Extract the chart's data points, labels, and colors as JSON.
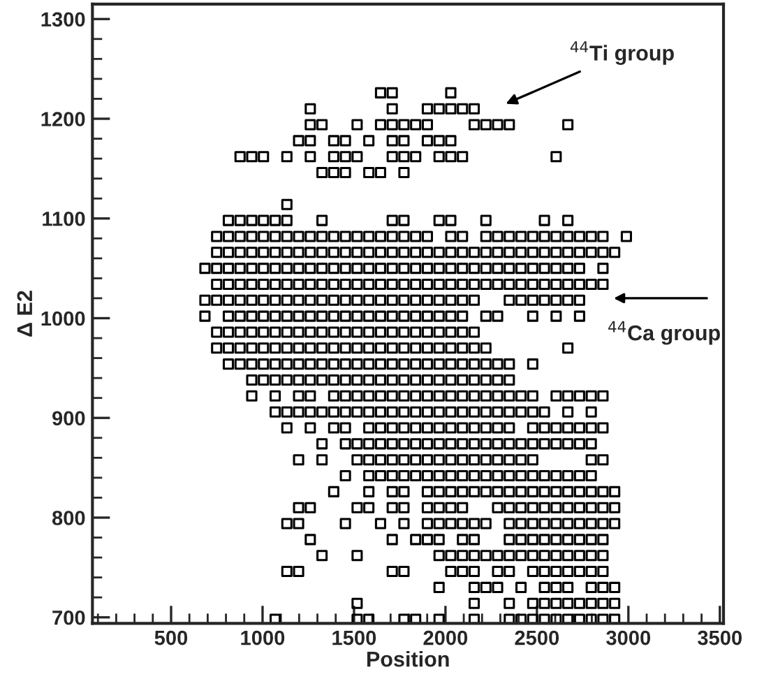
{
  "chart_data": {
    "type": "scatter",
    "xlabel": "Position",
    "ylabel": "Δ E2",
    "marker": "square",
    "color": "#000000",
    "grid": false,
    "legend": false,
    "xlim": [
      70,
      3520
    ],
    "xticks": [
      500,
      1000,
      1500,
      2000,
      2500,
      3000,
      3500
    ],
    "ylim": [
      694,
      1315
    ],
    "yticks": [
      700,
      800,
      900,
      1000,
      1100,
      1200,
      1300
    ],
    "annotations": [
      "$^{44}$Ti group",
      "$^{44}$Ca group"
    ],
    "series": [
      {
        "x": [
          1645,
          1709,
          2029
        ],
        "values": [
          1226,
          1226,
          1226
        ]
      },
      {
        "x": [
          1261,
          1709,
          1901,
          1965,
          2029,
          2093,
          2157
        ],
        "values": [
          1210,
          1210,
          1210,
          1210,
          1210,
          1210,
          1210
        ]
      },
      {
        "x": [
          1261,
          1325,
          1517,
          1645,
          1709,
          1773,
          1837,
          1901,
          2157,
          2221,
          2285,
          2349,
          2669
        ],
        "values": [
          1194,
          1194,
          1194,
          1194,
          1194,
          1194,
          1194,
          1194,
          1194,
          1194,
          1194,
          1194,
          1194
        ]
      },
      {
        "x": [
          1197,
          1261,
          1389,
          1453,
          1581,
          1709,
          1773,
          1901,
          1965,
          2029
        ],
        "values": [
          1178,
          1178,
          1178,
          1178,
          1178,
          1178,
          1178,
          1178,
          1178,
          1178
        ]
      },
      {
        "x": [
          877,
          941,
          1005,
          1133,
          1261,
          1389,
          1453,
          1517,
          1709,
          1773,
          1837,
          1965,
          2029,
          2093,
          2605
        ],
        "values": [
          1162,
          1162,
          1162,
          1162,
          1162,
          1162,
          1162,
          1162,
          1162,
          1162,
          1162,
          1162,
          1162,
          1162,
          1162
        ]
      },
      {
        "x": [
          1325,
          1389,
          1453,
          1581,
          1645,
          1773
        ],
        "values": [
          1146,
          1146,
          1146,
          1146,
          1146,
          1146
        ]
      },
      {
        "x": [
          1133
        ],
        "values": [
          1114
        ]
      },
      {
        "x": [
          813,
          877,
          941,
          1005,
          1069,
          1133,
          1325,
          1709,
          1773,
          1965,
          2029,
          2221,
          2541,
          2669
        ],
        "values": [
          1098,
          1098,
          1098,
          1098,
          1098,
          1098,
          1098,
          1098,
          1098,
          1098,
          1098,
          1098,
          1098,
          1098
        ]
      },
      {
        "x": [
          749,
          813,
          877,
          941,
          1005,
          1069,
          1133,
          1197,
          1261,
          1325,
          1389,
          1453,
          1517,
          1581,
          1645,
          1709,
          1773,
          1837,
          1901,
          2029,
          2093,
          2221,
          2285,
          2349,
          2413,
          2477,
          2541,
          2605,
          2669,
          2733,
          2797,
          2861,
          2989
        ],
        "values": [
          1082,
          1082,
          1082,
          1082,
          1082,
          1082,
          1082,
          1082,
          1082,
          1082,
          1082,
          1082,
          1082,
          1082,
          1082,
          1082,
          1082,
          1082,
          1082,
          1082,
          1082,
          1082,
          1082,
          1082,
          1082,
          1082,
          1082,
          1082,
          1082,
          1082,
          1082,
          1082,
          1082
        ]
      },
      {
        "x": [
          749,
          813,
          877,
          941,
          1005,
          1069,
          1133,
          1197,
          1261,
          1325,
          1389,
          1453,
          1517,
          1581,
          1645,
          1709,
          1773,
          1837,
          1901,
          1965,
          2029,
          2093,
          2157,
          2221,
          2285,
          2349,
          2413,
          2477,
          2541,
          2605,
          2669,
          2733,
          2797,
          2861,
          2925
        ],
        "values": [
          1066,
          1066,
          1066,
          1066,
          1066,
          1066,
          1066,
          1066,
          1066,
          1066,
          1066,
          1066,
          1066,
          1066,
          1066,
          1066,
          1066,
          1066,
          1066,
          1066,
          1066,
          1066,
          1066,
          1066,
          1066,
          1066,
          1066,
          1066,
          1066,
          1066,
          1066,
          1066,
          1066,
          1066,
          1066
        ]
      },
      {
        "x": [
          685,
          749,
          813,
          877,
          941,
          1005,
          1069,
          1133,
          1197,
          1261,
          1325,
          1389,
          1453,
          1517,
          1581,
          1645,
          1709,
          1773,
          1837,
          1901,
          1965,
          2029,
          2093,
          2157,
          2221,
          2285,
          2349,
          2413,
          2477,
          2541,
          2605,
          2669,
          2733,
          2861
        ],
        "values": [
          1050,
          1050,
          1050,
          1050,
          1050,
          1050,
          1050,
          1050,
          1050,
          1050,
          1050,
          1050,
          1050,
          1050,
          1050,
          1050,
          1050,
          1050,
          1050,
          1050,
          1050,
          1050,
          1050,
          1050,
          1050,
          1050,
          1050,
          1050,
          1050,
          1050,
          1050,
          1050,
          1050,
          1050
        ]
      },
      {
        "x": [
          749,
          813,
          877,
          941,
          1005,
          1069,
          1133,
          1197,
          1261,
          1325,
          1389,
          1453,
          1517,
          1581,
          1645,
          1709,
          1773,
          1837,
          1901,
          1965,
          2029,
          2093,
          2157,
          2221,
          2285,
          2349,
          2413,
          2477,
          2541,
          2605,
          2669,
          2733,
          2797,
          2861
        ],
        "values": [
          1034,
          1034,
          1034,
          1034,
          1034,
          1034,
          1034,
          1034,
          1034,
          1034,
          1034,
          1034,
          1034,
          1034,
          1034,
          1034,
          1034,
          1034,
          1034,
          1034,
          1034,
          1034,
          1034,
          1034,
          1034,
          1034,
          1034,
          1034,
          1034,
          1034,
          1034,
          1034,
          1034,
          1034
        ]
      },
      {
        "x": [
          685,
          749,
          813,
          877,
          941,
          1005,
          1069,
          1133,
          1197,
          1261,
          1325,
          1389,
          1453,
          1517,
          1581,
          1645,
          1709,
          1773,
          1837,
          1901,
          1965,
          2029,
          2093,
          2157,
          2349,
          2413,
          2477,
          2541,
          2605,
          2669,
          2733
        ],
        "values": [
          1018,
          1018,
          1018,
          1018,
          1018,
          1018,
          1018,
          1018,
          1018,
          1018,
          1018,
          1018,
          1018,
          1018,
          1018,
          1018,
          1018,
          1018,
          1018,
          1018,
          1018,
          1018,
          1018,
          1018,
          1018,
          1018,
          1018,
          1018,
          1018,
          1018,
          1018
        ]
      },
      {
        "x": [
          685,
          813,
          877,
          941,
          1005,
          1069,
          1133,
          1197,
          1261,
          1325,
          1389,
          1453,
          1517,
          1581,
          1645,
          1709,
          1773,
          1837,
          1901,
          1965,
          2029,
          2093,
          2221,
          2285,
          2477,
          2605,
          2733
        ],
        "values": [
          1002,
          1002,
          1002,
          1002,
          1002,
          1002,
          1002,
          1002,
          1002,
          1002,
          1002,
          1002,
          1002,
          1002,
          1002,
          1002,
          1002,
          1002,
          1002,
          1002,
          1002,
          1002,
          1002,
          1002,
          1002,
          1002,
          1002
        ]
      },
      {
        "x": [
          749,
          813,
          877,
          941,
          1005,
          1069,
          1133,
          1197,
          1261,
          1325,
          1389,
          1453,
          1517,
          1581,
          1645,
          1709,
          1773,
          1837,
          1901,
          1965,
          2029,
          2093,
          2157
        ],
        "values": [
          986,
          986,
          986,
          986,
          986,
          986,
          986,
          986,
          986,
          986,
          986,
          986,
          986,
          986,
          986,
          986,
          986,
          986,
          986,
          986,
          986,
          986,
          986
        ]
      },
      {
        "x": [
          749,
          813,
          877,
          941,
          1005,
          1069,
          1133,
          1197,
          1261,
          1325,
          1389,
          1453,
          1517,
          1581,
          1645,
          1709,
          1773,
          1837,
          1901,
          1965,
          2029,
          2093,
          2157,
          2221,
          2669
        ],
        "values": [
          970,
          970,
          970,
          970,
          970,
          970,
          970,
          970,
          970,
          970,
          970,
          970,
          970,
          970,
          970,
          970,
          970,
          970,
          970,
          970,
          970,
          970,
          970,
          970,
          970
        ]
      },
      {
        "x": [
          813,
          877,
          941,
          1005,
          1069,
          1133,
          1197,
          1261,
          1325,
          1389,
          1453,
          1517,
          1581,
          1645,
          1709,
          1773,
          1837,
          1901,
          1965,
          2029,
          2093,
          2157,
          2221,
          2285,
          2349,
          2477
        ],
        "values": [
          954,
          954,
          954,
          954,
          954,
          954,
          954,
          954,
          954,
          954,
          954,
          954,
          954,
          954,
          954,
          954,
          954,
          954,
          954,
          954,
          954,
          954,
          954,
          954,
          954,
          954
        ]
      },
      {
        "x": [
          941,
          1005,
          1069,
          1133,
          1197,
          1261,
          1325,
          1389,
          1453,
          1517,
          1581,
          1645,
          1709,
          1773,
          1837,
          1901,
          1965,
          2029,
          2093,
          2157,
          2221,
          2285,
          2349
        ],
        "values": [
          938,
          938,
          938,
          938,
          938,
          938,
          938,
          938,
          938,
          938,
          938,
          938,
          938,
          938,
          938,
          938,
          938,
          938,
          938,
          938,
          938,
          938,
          938
        ]
      },
      {
        "x": [
          941,
          1069,
          1197,
          1261,
          1389,
          1453,
          1517,
          1581,
          1645,
          1709,
          1773,
          1837,
          1901,
          1965,
          2029,
          2093,
          2157,
          2221,
          2285,
          2349,
          2413,
          2477,
          2605,
          2669,
          2733,
          2797,
          2861
        ],
        "values": [
          922,
          922,
          922,
          922,
          922,
          922,
          922,
          922,
          922,
          922,
          922,
          922,
          922,
          922,
          922,
          922,
          922,
          922,
          922,
          922,
          922,
          922,
          922,
          922,
          922,
          922,
          922
        ]
      },
      {
        "x": [
          1069,
          1133,
          1197,
          1261,
          1325,
          1389,
          1453,
          1517,
          1581,
          1645,
          1709,
          1773,
          1837,
          1901,
          1965,
          2029,
          2093,
          2157,
          2221,
          2285,
          2349,
          2413,
          2477,
          2541,
          2669,
          2797
        ],
        "values": [
          906,
          906,
          906,
          906,
          906,
          906,
          906,
          906,
          906,
          906,
          906,
          906,
          906,
          906,
          906,
          906,
          906,
          906,
          906,
          906,
          906,
          906,
          906,
          906,
          906,
          906
        ]
      },
      {
        "x": [
          1133,
          1261,
          1389,
          1453,
          1581,
          1645,
          1709,
          1773,
          1837,
          1901,
          1965,
          2029,
          2093,
          2157,
          2221,
          2285,
          2349,
          2477,
          2541,
          2605,
          2669,
          2733,
          2797,
          2861
        ],
        "values": [
          890,
          890,
          890,
          890,
          890,
          890,
          890,
          890,
          890,
          890,
          890,
          890,
          890,
          890,
          890,
          890,
          890,
          890,
          890,
          890,
          890,
          890,
          890,
          890
        ]
      },
      {
        "x": [
          1325,
          1453,
          1517,
          1581,
          1645,
          1709,
          1773,
          1837,
          1901,
          1965,
          2029,
          2093,
          2157,
          2221,
          2285,
          2349,
          2413,
          2477,
          2541,
          2605,
          2669,
          2733,
          2797
        ],
        "values": [
          874,
          874,
          874,
          874,
          874,
          874,
          874,
          874,
          874,
          874,
          874,
          874,
          874,
          874,
          874,
          874,
          874,
          874,
          874,
          874,
          874,
          874,
          874
        ]
      },
      {
        "x": [
          1197,
          1325,
          1517,
          1581,
          1645,
          1709,
          1773,
          1837,
          1901,
          1965,
          2029,
          2093,
          2157,
          2221,
          2285,
          2349,
          2413,
          2477,
          2797,
          2861
        ],
        "values": [
          858,
          858,
          858,
          858,
          858,
          858,
          858,
          858,
          858,
          858,
          858,
          858,
          858,
          858,
          858,
          858,
          858,
          858,
          858,
          858
        ]
      },
      {
        "x": [
          1453,
          1581,
          1645,
          1709,
          1773,
          1837,
          1901,
          1965,
          2029,
          2093,
          2157,
          2221,
          2285,
          2349,
          2413,
          2477,
          2541,
          2605,
          2669,
          2733,
          2797
        ],
        "values": [
          842,
          842,
          842,
          842,
          842,
          842,
          842,
          842,
          842,
          842,
          842,
          842,
          842,
          842,
          842,
          842,
          842,
          842,
          842,
          842,
          842
        ]
      },
      {
        "x": [
          1389,
          1581,
          1709,
          1773,
          1901,
          1965,
          2029,
          2093,
          2157,
          2221,
          2285,
          2349,
          2413,
          2477,
          2541,
          2605,
          2669,
          2733,
          2797,
          2861,
          2925
        ],
        "values": [
          826,
          826,
          826,
          826,
          826,
          826,
          826,
          826,
          826,
          826,
          826,
          826,
          826,
          826,
          826,
          826,
          826,
          826,
          826,
          826,
          826
        ]
      },
      {
        "x": [
          1197,
          1261,
          1517,
          1581,
          1709,
          1773,
          1901,
          1965,
          2029,
          2093,
          2285,
          2349,
          2413,
          2477,
          2541,
          2605,
          2669,
          2733,
          2797,
          2861,
          2925
        ],
        "values": [
          810,
          810,
          810,
          810,
          810,
          810,
          810,
          810,
          810,
          810,
          810,
          810,
          810,
          810,
          810,
          810,
          810,
          810,
          810,
          810,
          810
        ]
      },
      {
        "x": [
          1133,
          1197,
          1453,
          1645,
          1773,
          1901,
          1965,
          2029,
          2093,
          2157,
          2221,
          2349,
          2413,
          2477,
          2541,
          2605,
          2669,
          2733,
          2797,
          2861,
          2925
        ],
        "values": [
          794,
          794,
          794,
          794,
          794,
          794,
          794,
          794,
          794,
          794,
          794,
          794,
          794,
          794,
          794,
          794,
          794,
          794,
          794,
          794,
          794
        ]
      },
      {
        "x": [
          1261,
          1709,
          1837,
          1901,
          1965,
          2093,
          2157,
          2349,
          2413,
          2477,
          2541,
          2605,
          2669,
          2733,
          2797,
          2861
        ],
        "values": [
          778,
          778,
          778,
          778,
          778,
          778,
          778,
          778,
          778,
          778,
          778,
          778,
          778,
          778,
          778,
          778
        ]
      },
      {
        "x": [
          1325,
          1517,
          1965,
          2029,
          2093,
          2157,
          2221,
          2285,
          2349,
          2413,
          2477,
          2541,
          2605,
          2669,
          2733,
          2797,
          2861
        ],
        "values": [
          762,
          762,
          762,
          762,
          762,
          762,
          762,
          762,
          762,
          762,
          762,
          762,
          762,
          762,
          762,
          762,
          762
        ]
      },
      {
        "x": [
          1133,
          1197,
          1709,
          1773,
          2029,
          2093,
          2157,
          2285,
          2349,
          2477,
          2541,
          2605,
          2669,
          2733,
          2797,
          2861
        ],
        "values": [
          746,
          746,
          746,
          746,
          746,
          746,
          746,
          746,
          746,
          746,
          746,
          746,
          746,
          746,
          746,
          746
        ]
      },
      {
        "x": [
          1965,
          2157,
          2221,
          2285,
          2413,
          2541,
          2605,
          2669,
          2797,
          2861,
          2925
        ],
        "values": [
          730,
          730,
          730,
          730,
          730,
          730,
          730,
          730,
          730,
          730,
          730
        ]
      },
      {
        "x": [
          1517,
          2157,
          2349,
          2477,
          2541,
          2605,
          2669,
          2733,
          2797,
          2861,
          2925
        ],
        "values": [
          714,
          714,
          714,
          714,
          714,
          714,
          714,
          714,
          714,
          714,
          714
        ]
      },
      {
        "x": [
          1069,
          1517,
          1581,
          1773,
          1837,
          1965,
          2157,
          2349,
          2413,
          2477,
          2541,
          2605,
          2669,
          2733,
          2797,
          2861,
          2925
        ],
        "values": [
          698,
          698,
          698,
          698,
          698,
          698,
          698,
          698,
          698,
          698,
          698,
          698,
          698,
          698,
          698,
          698,
          698
        ]
      }
    ]
  }
}
